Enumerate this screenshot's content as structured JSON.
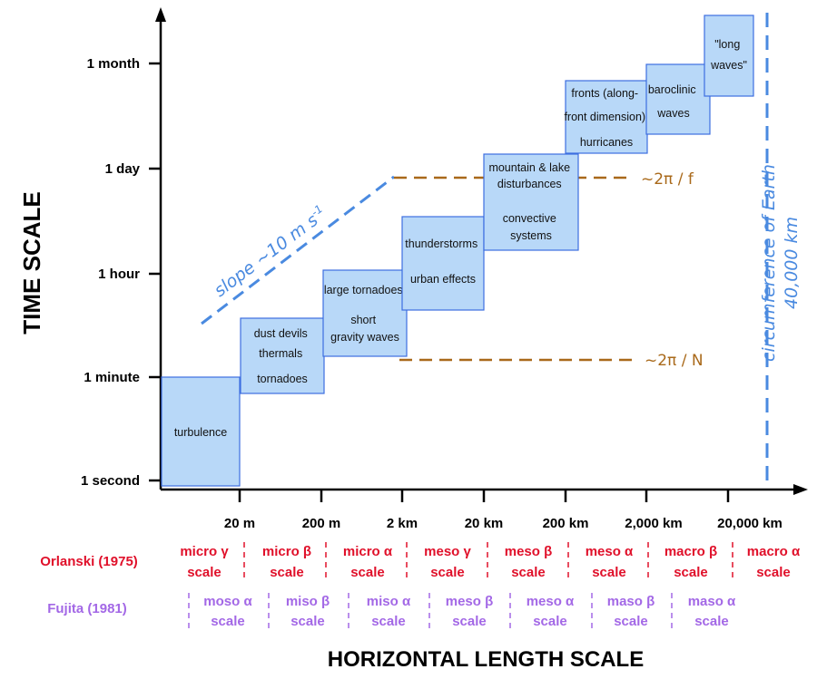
{
  "axis": {
    "y_title": "TIME SCALE",
    "x_title": "HORIZONTAL LENGTH SCALE",
    "y_ticks": [
      "1 month",
      "1 day",
      "1 hour",
      "1 minute",
      "1 second"
    ],
    "x_ticks": [
      "20 m",
      "200 m",
      "2 km",
      "20 km",
      "200 km",
      "2,000 km",
      "20,000 km"
    ]
  },
  "boxes": [
    {
      "lines": [
        "turbulence"
      ]
    },
    {
      "lines": [
        "dust devils",
        "thermals",
        "tornadoes"
      ]
    },
    {
      "lines": [
        "large tornadoes",
        "short",
        "gravity waves"
      ]
    },
    {
      "lines": [
        "thunderstorms",
        "urban effects"
      ]
    },
    {
      "lines": [
        "mountain & lake",
        "disturbances",
        "convective",
        "systems"
      ]
    },
    {
      "lines": [
        "fronts (along-",
        "front dimension)",
        "hurricanes"
      ]
    },
    {
      "lines": [
        "baroclinic",
        "waves"
      ]
    },
    {
      "lines": [
        "\"long",
        "waves\""
      ]
    }
  ],
  "reference_lines": {
    "coriolis_label": "~2π / f",
    "buoyancy_label": "~2π / N",
    "slope_label": "slope ~10 m s",
    "slope_exponent": "-1",
    "earth_label_line1": "circumference of Earth",
    "earth_label_line2": "40,000 km"
  },
  "orlanski": {
    "label": "Orlanski (1975)",
    "scales": [
      {
        "name": "micro γ",
        "sub": "scale"
      },
      {
        "name": "micro β",
        "sub": "scale"
      },
      {
        "name": "micro α",
        "sub": "scale"
      },
      {
        "name": "meso γ",
        "sub": "scale"
      },
      {
        "name": "meso β",
        "sub": "scale"
      },
      {
        "name": "meso α",
        "sub": "scale"
      },
      {
        "name": "macro β",
        "sub": "scale"
      },
      {
        "name": "macro α",
        "sub": "scale"
      }
    ]
  },
  "fujita": {
    "label": "Fujita (1981)",
    "scales": [
      {
        "name": "moso α",
        "sub": "scale"
      },
      {
        "name": "miso β",
        "sub": "scale"
      },
      {
        "name": "miso α",
        "sub": "scale"
      },
      {
        "name": "meso β",
        "sub": "scale"
      },
      {
        "name": "meso α",
        "sub": "scale"
      },
      {
        "name": "maso β",
        "sub": "scale"
      },
      {
        "name": "maso α",
        "sub": "scale"
      }
    ]
  },
  "colors": {
    "box_fill": "#b8d8f8",
    "box_stroke": "#3c6ee0",
    "slope_blue": "#4a8ae0",
    "ref_brown": "#a9691a",
    "orlanski_red": "#e0102a",
    "fujita_purple": "#a368e6"
  }
}
